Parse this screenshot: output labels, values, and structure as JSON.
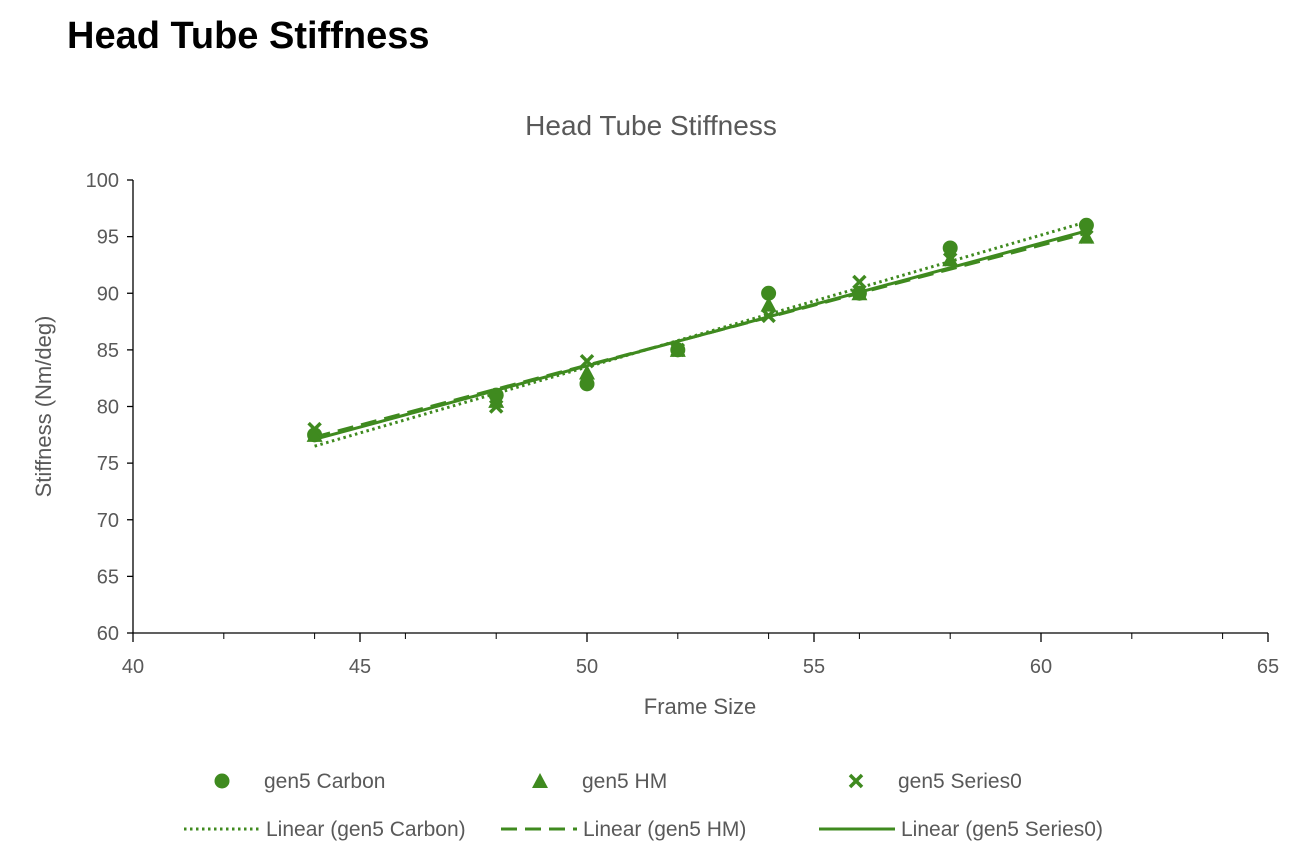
{
  "page": {
    "heading": "Head Tube Stiffness"
  },
  "colors": {
    "series": "#3f8a1f",
    "axis_text": "#595959",
    "axis_line": "#000000"
  },
  "chart_data": {
    "type": "scatter",
    "title": "Head Tube Stiffness",
    "xlabel": "Frame Size",
    "ylabel": "Stiffness (Nm/deg)",
    "xlim": [
      40,
      65
    ],
    "ylim": [
      60,
      100
    ],
    "x_ticks": [
      40,
      45,
      50,
      55,
      60,
      65
    ],
    "y_ticks": [
      60,
      65,
      70,
      75,
      80,
      85,
      90,
      95,
      100
    ],
    "grid": false,
    "legend_position": "bottom",
    "series": [
      {
        "name": "gen5 Carbon",
        "marker": "circle",
        "x": [
          44,
          48,
          50,
          52,
          54,
          56,
          58,
          61
        ],
        "y": [
          77.5,
          81,
          82,
          85,
          90,
          90,
          94,
          96
        ]
      },
      {
        "name": "gen5 HM",
        "marker": "triangle",
        "x": [
          44,
          48,
          50,
          52,
          54,
          56,
          58,
          61
        ],
        "y": [
          77.5,
          80.5,
          83,
          85,
          89,
          90,
          93,
          95
        ]
      },
      {
        "name": "gen5 Series0",
        "marker": "x",
        "x": [
          44,
          48,
          50,
          52,
          54,
          56,
          58,
          61
        ],
        "y": [
          78,
          80,
          84,
          85,
          88,
          91,
          93,
          95
        ]
      }
    ],
    "trendlines": [
      {
        "name": "Linear (gen5 Carbon)",
        "style": "dotted",
        "x": [
          44,
          61
        ],
        "y": [
          76.5,
          96.3
        ]
      },
      {
        "name": "Linear (gen5 HM)",
        "style": "dashed",
        "x": [
          44,
          61
        ],
        "y": [
          77.3,
          95.3
        ]
      },
      {
        "name": "Linear (gen5 Series0)",
        "style": "solid",
        "x": [
          44,
          61
        ],
        "y": [
          77.1,
          95.5
        ]
      }
    ]
  }
}
